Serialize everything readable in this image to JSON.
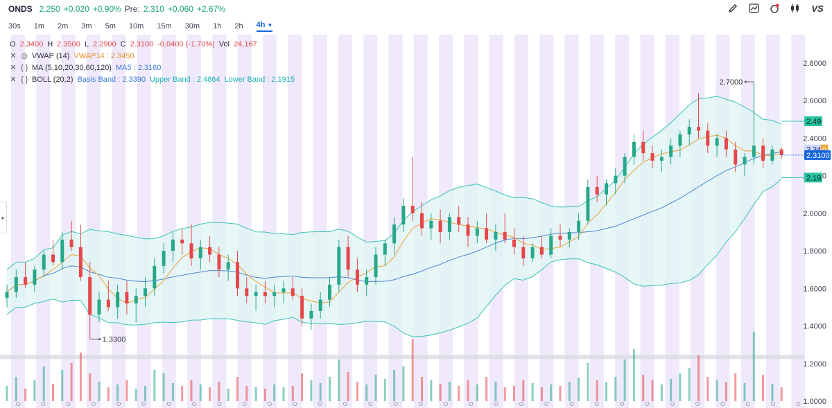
{
  "header": {
    "symbol": "ONDS",
    "price": "2.250",
    "change": "+0.020",
    "change_pct": "+0.90%",
    "pre_label": "Pre:",
    "pre_price": "2.310",
    "pre_change": "+0.060",
    "pre_change_pct": "+2.67%"
  },
  "toolbar": {
    "icons": [
      "pencil-icon",
      "chart-line-icon",
      "indicator-badge-icon",
      "candlestick-icon",
      "vs-compare-icon"
    ],
    "vs_label": "VS"
  },
  "timeframes": [
    {
      "label": "30s"
    },
    {
      "label": "1m"
    },
    {
      "label": "2m"
    },
    {
      "label": "3m"
    },
    {
      "label": "5m"
    },
    {
      "label": "10m"
    },
    {
      "label": "15m"
    },
    {
      "label": "30m"
    },
    {
      "label": "1h"
    },
    {
      "label": "2h"
    },
    {
      "label": "4h",
      "active": true
    }
  ],
  "legend": {
    "ohlc": {
      "o_label": "O",
      "o": "2.3400",
      "h_label": "H",
      "h": "2.3500",
      "l_label": "L",
      "l": "2.2900",
      "c_label": "C",
      "c": "2.3100",
      "chg": "-0.0400 (-1.70%)",
      "vol_label": "Vol",
      "vol": "24,167"
    },
    "vwap": {
      "name": "VWAP (14)",
      "value": "VWAP14 : 2.3450"
    },
    "ma": {
      "name": "MA (5,10,20,30,60,120)",
      "value": "MA5 : 2.3160"
    },
    "boll": {
      "name": "BOLL (20,2)",
      "basis": "Basis Band : 2.3390",
      "upper": "Upper Band : 2.4864",
      "lower": "Lower Band : 2.1915"
    }
  },
  "y_axis": {
    "ticks": [
      "2.8000",
      "2.6000",
      "2.4000",
      "2.2000",
      "2.0000",
      "1.8000",
      "1.6000",
      "1.4000",
      "1.2000",
      "1.0000"
    ]
  },
  "price_tags": {
    "upper": "2.49",
    "vwap": "2.34",
    "vwap_suffix": "0",
    "current": "2.3100",
    "lower": "2.19"
  },
  "annotations": {
    "high": "2.7000",
    "low": "1.3300"
  },
  "colors": {
    "up": "#26a889",
    "down": "#e5474b",
    "band_fill": "#dff4f2",
    "band_line": "#39c3b8",
    "ma_line": "#4a86d8",
    "vwap_line": "#e9a23b",
    "session_stripe": "#efe9fb"
  },
  "chart_data": {
    "type": "candlestick",
    "ylim": [
      1.0,
      2.85
    ],
    "candles": [
      [
        1.55,
        1.62,
        1.5,
        1.58
      ],
      [
        1.58,
        1.7,
        1.55,
        1.66
      ],
      [
        1.66,
        1.74,
        1.6,
        1.62
      ],
      [
        1.62,
        1.72,
        1.58,
        1.7
      ],
      [
        1.7,
        1.8,
        1.66,
        1.78
      ],
      [
        1.78,
        1.86,
        1.72,
        1.74
      ],
      [
        1.74,
        1.9,
        1.7,
        1.86
      ],
      [
        1.86,
        1.96,
        1.8,
        1.82
      ],
      [
        1.82,
        1.94,
        1.64,
        1.66
      ],
      [
        1.66,
        1.74,
        1.33,
        1.46
      ],
      [
        1.46,
        1.58,
        1.42,
        1.54
      ],
      [
        1.54,
        1.64,
        1.48,
        1.5
      ],
      [
        1.5,
        1.62,
        1.44,
        1.58
      ],
      [
        1.58,
        1.64,
        1.46,
        1.52
      ],
      [
        1.52,
        1.6,
        1.42,
        1.56
      ],
      [
        1.56,
        1.66,
        1.5,
        1.6
      ],
      [
        1.6,
        1.76,
        1.56,
        1.72
      ],
      [
        1.72,
        1.84,
        1.68,
        1.8
      ],
      [
        1.8,
        1.9,
        1.74,
        1.86
      ],
      [
        1.86,
        1.92,
        1.78,
        1.84
      ],
      [
        1.84,
        1.94,
        1.72,
        1.76
      ],
      [
        1.76,
        1.86,
        1.7,
        1.82
      ],
      [
        1.82,
        1.88,
        1.74,
        1.78
      ],
      [
        1.78,
        1.82,
        1.66,
        1.7
      ],
      [
        1.7,
        1.78,
        1.64,
        1.74
      ],
      [
        1.74,
        1.8,
        1.56,
        1.6
      ],
      [
        1.6,
        1.66,
        1.52,
        1.56
      ],
      [
        1.56,
        1.62,
        1.48,
        1.58
      ],
      [
        1.58,
        1.64,
        1.52,
        1.56
      ],
      [
        1.56,
        1.62,
        1.5,
        1.58
      ],
      [
        1.58,
        1.64,
        1.52,
        1.6
      ],
      [
        1.6,
        1.66,
        1.54,
        1.56
      ],
      [
        1.56,
        1.6,
        1.4,
        1.44
      ],
      [
        1.44,
        1.52,
        1.38,
        1.48
      ],
      [
        1.48,
        1.58,
        1.44,
        1.54
      ],
      [
        1.54,
        1.66,
        1.5,
        1.62
      ],
      [
        1.62,
        1.86,
        1.58,
        1.82
      ],
      [
        1.82,
        1.88,
        1.66,
        1.7
      ],
      [
        1.7,
        1.76,
        1.58,
        1.62
      ],
      [
        1.62,
        1.7,
        1.56,
        1.66
      ],
      [
        1.66,
        1.82,
        1.62,
        1.78
      ],
      [
        1.78,
        1.86,
        1.72,
        1.84
      ],
      [
        1.84,
        1.98,
        1.78,
        1.94
      ],
      [
        1.94,
        2.08,
        1.9,
        2.04
      ],
      [
        2.04,
        2.3,
        1.96,
        2.0
      ],
      [
        2.0,
        2.06,
        1.88,
        1.92
      ],
      [
        1.92,
        2.0,
        1.86,
        1.96
      ],
      [
        1.96,
        2.02,
        1.84,
        1.9
      ],
      [
        1.9,
        2.0,
        1.86,
        1.98
      ],
      [
        1.98,
        2.04,
        1.9,
        1.94
      ],
      [
        1.94,
        1.98,
        1.82,
        1.88
      ],
      [
        1.88,
        1.96,
        1.84,
        1.92
      ],
      [
        1.92,
        2.0,
        1.84,
        1.86
      ],
      [
        1.86,
        1.94,
        1.8,
        1.9
      ],
      [
        1.9,
        2.0,
        1.84,
        1.86
      ],
      [
        1.86,
        1.92,
        1.78,
        1.82
      ],
      [
        1.82,
        1.88,
        1.72,
        1.76
      ],
      [
        1.76,
        1.84,
        1.74,
        1.82
      ],
      [
        1.82,
        1.88,
        1.76,
        1.78
      ],
      [
        1.78,
        1.92,
        1.76,
        1.88
      ],
      [
        1.88,
        1.94,
        1.82,
        1.86
      ],
      [
        1.86,
        1.92,
        1.82,
        1.9
      ],
      [
        1.9,
        2.0,
        1.86,
        1.96
      ],
      [
        1.96,
        2.18,
        1.94,
        2.14
      ],
      [
        2.14,
        2.2,
        2.06,
        2.1
      ],
      [
        2.1,
        2.18,
        2.04,
        2.16
      ],
      [
        2.16,
        2.24,
        2.1,
        2.2
      ],
      [
        2.2,
        2.32,
        2.16,
        2.3
      ],
      [
        2.3,
        2.42,
        2.26,
        2.38
      ],
      [
        2.38,
        2.44,
        2.28,
        2.32
      ],
      [
        2.32,
        2.36,
        2.24,
        2.28
      ],
      [
        2.28,
        2.34,
        2.22,
        2.3
      ],
      [
        2.3,
        2.4,
        2.26,
        2.36
      ],
      [
        2.36,
        2.44,
        2.3,
        2.42
      ],
      [
        2.42,
        2.5,
        2.36,
        2.46
      ],
      [
        2.46,
        2.64,
        2.4,
        2.44
      ],
      [
        2.44,
        2.48,
        2.32,
        2.36
      ],
      [
        2.36,
        2.42,
        2.3,
        2.4
      ],
      [
        2.4,
        2.44,
        2.3,
        2.34
      ],
      [
        2.34,
        2.38,
        2.22,
        2.26
      ],
      [
        2.26,
        2.32,
        2.2,
        2.3
      ],
      [
        2.3,
        2.7,
        2.26,
        2.36
      ],
      [
        2.36,
        2.4,
        2.24,
        2.28
      ],
      [
        2.28,
        2.36,
        2.26,
        2.34
      ],
      [
        2.34,
        2.35,
        2.29,
        2.31
      ]
    ],
    "volumes": [
      0.22,
      0.35,
      0.18,
      0.3,
      0.5,
      0.25,
      0.45,
      0.55,
      0.7,
      0.4,
      0.28,
      0.2,
      0.24,
      0.3,
      0.18,
      0.22,
      0.45,
      0.4,
      0.26,
      0.22,
      0.3,
      0.24,
      0.2,
      0.28,
      0.18,
      0.35,
      0.22,
      0.2,
      0.18,
      0.24,
      0.2,
      0.22,
      0.4,
      0.3,
      0.26,
      0.35,
      0.6,
      0.42,
      0.28,
      0.24,
      0.38,
      0.32,
      0.45,
      0.5,
      0.9,
      0.35,
      0.3,
      0.25,
      0.28,
      0.22,
      0.3,
      0.24,
      0.35,
      0.28,
      0.2,
      0.22,
      0.3,
      0.26,
      0.2,
      0.24,
      0.22,
      0.28,
      0.34,
      0.55,
      0.3,
      0.28,
      0.35,
      0.6,
      0.75,
      0.38,
      0.3,
      0.24,
      0.32,
      0.4,
      0.48,
      0.66,
      0.35,
      0.3,
      0.28,
      0.4,
      0.26,
      1.0,
      0.38,
      0.25,
      0.2
    ]
  }
}
